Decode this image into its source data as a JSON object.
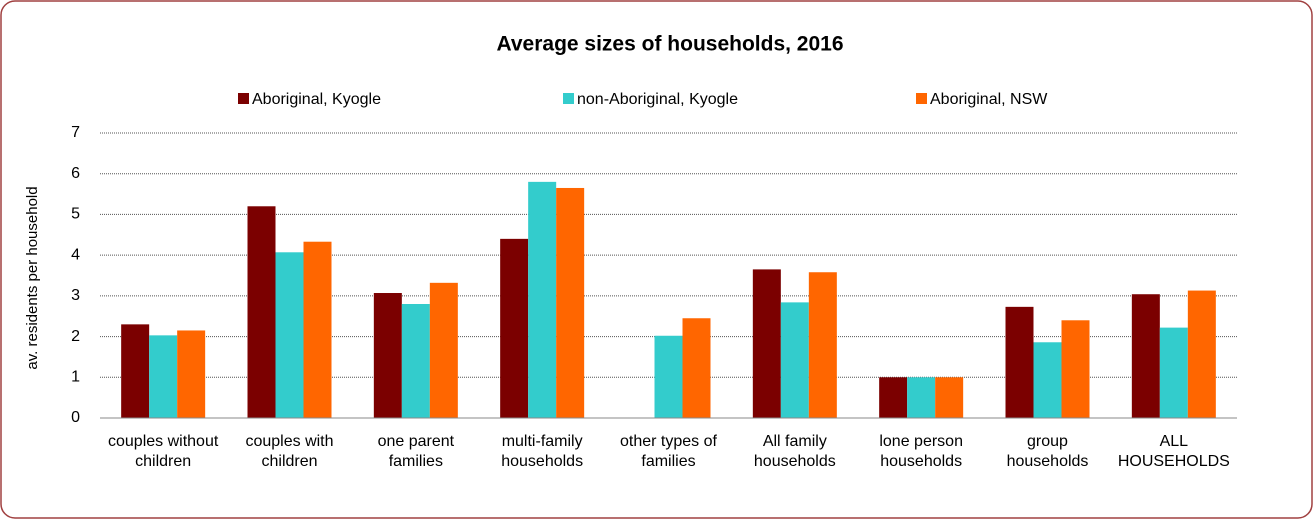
{
  "chart_data": {
    "type": "bar",
    "title": "Average sizes of households, 2016",
    "y_label": "av. residents per household",
    "categories": [
      "couples without children",
      "couples with children",
      "one parent families",
      "multi-family households",
      "other types of families",
      "All family households",
      "lone person households",
      "group households",
      "ALL HOUSEHOLDS"
    ],
    "series": [
      {
        "name": "Aboriginal, Kyogle",
        "color": "#7b0000",
        "values": [
          2.3,
          5.2,
          3.07,
          4.4,
          null,
          3.65,
          1.0,
          2.73,
          3.04
        ]
      },
      {
        "name": "non-Aboriginal, Kyogle",
        "color": "#33cccc",
        "values": [
          2.03,
          4.07,
          2.8,
          5.8,
          2.02,
          2.84,
          1.0,
          1.86,
          2.22
        ]
      },
      {
        "name": "Aboriginal, NSW",
        "color": "#ff6600",
        "values": [
          2.15,
          4.33,
          3.32,
          5.65,
          2.45,
          3.58,
          1.0,
          2.4,
          3.13
        ]
      }
    ],
    "ylim": [
      0,
      7
    ],
    "yticks": [
      0,
      1,
      2,
      3,
      4,
      5,
      6,
      7
    ],
    "grid": true,
    "legend": "top"
  }
}
